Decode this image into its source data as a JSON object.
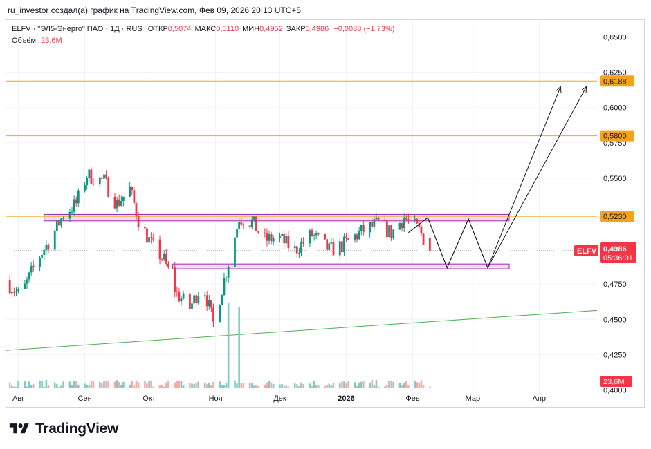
{
  "header": {
    "text": "ru_investor создал(а) график на TradingView.com, Фев 09, 2026 20:13 UTC+5"
  },
  "legend": {
    "title": "ELFV · \"ЭЛ5-Энерго\" ПАО · 1Д · RUS",
    "open_label": "ОТКР",
    "open_value": "0,5074",
    "high_label": "МАКС",
    "high_value": "0,5110",
    "low_label": "МИН",
    "low_value": "0,4952",
    "close_label": "ЗАКР",
    "close_value": "0,4986",
    "change": "−0,0088 (−1,73%)",
    "volume_label": "Объём",
    "volume_value": "23,6M"
  },
  "colors": {
    "up": "#089981",
    "down": "#f23645",
    "level": "#f7a21b",
    "zone_fill": "#f3d9f2",
    "zone_stroke": "#9c27b0",
    "trend": "#4caf50",
    "volume_up": "#80cbc4",
    "volume_down": "#f7a9a7",
    "arrow": "#131722"
  },
  "footer": {
    "logo_icon": "tradingview-logo-icon",
    "logo_text": "TradingView"
  },
  "chart_data": {
    "type": "candlestick",
    "symbol": "ELFV",
    "timeframe": "1D",
    "y_range": [
      0.3875,
      0.6625
    ],
    "y_ticks": [
      0.4,
      0.425,
      0.45,
      0.475,
      0.5,
      0.525,
      0.55,
      0.575,
      0.6,
      0.625,
      0.65
    ],
    "y_tick_labels": [
      "0,4000",
      "0,4250",
      "0,4500",
      "0,4750",
      "",
      "",
      "0,5500",
      "0,5750",
      "0,6000",
      "0,6250",
      "0,6500"
    ],
    "x_labels": [
      {
        "label": "Авг",
        "date": "2025-08-01",
        "bold": false
      },
      {
        "label": "Сен",
        "date": "2025-09-01",
        "bold": false
      },
      {
        "label": "Окт",
        "date": "2025-10-01",
        "bold": false
      },
      {
        "label": "Ноя",
        "date": "2025-11-01",
        "bold": false
      },
      {
        "label": "Дек",
        "date": "2025-12-01",
        "bold": false
      },
      {
        "label": "2026",
        "date": "2026-01-01",
        "bold": true
      },
      {
        "label": "Фев",
        "date": "2026-02-01",
        "bold": false
      },
      {
        "label": "Мар",
        "date": "2026-03-01",
        "bold": false
      },
      {
        "label": "Апр",
        "date": "2026-04-01",
        "bold": false
      }
    ],
    "x_range": [
      "2025-07-26",
      "2026-04-28"
    ],
    "price_path": [
      [
        "2025-07-26",
        0.478
      ],
      [
        "2025-08-02",
        0.466
      ],
      [
        "2025-08-10",
        0.493
      ],
      [
        "2025-08-16",
        0.507
      ],
      [
        "2025-08-22",
        0.524
      ],
      [
        "2025-08-28",
        0.532
      ],
      [
        "2025-09-02",
        0.552
      ],
      [
        "2025-09-10",
        0.548
      ],
      [
        "2025-09-16",
        0.532
      ],
      [
        "2025-09-22",
        0.542
      ],
      [
        "2025-09-26",
        0.521
      ],
      [
        "2025-10-02",
        0.503
      ],
      [
        "2025-10-08",
        0.492
      ],
      [
        "2025-10-14",
        0.468
      ],
      [
        "2025-10-20",
        0.458
      ],
      [
        "2025-10-26",
        0.476
      ],
      [
        "2025-10-31",
        0.447
      ],
      [
        "2025-11-04",
        0.472
      ],
      [
        "2025-11-08",
        0.496
      ],
      [
        "2025-11-12",
        0.522
      ],
      [
        "2025-11-18",
        0.519
      ],
      [
        "2025-11-24",
        0.506
      ],
      [
        "2025-11-30",
        0.508
      ],
      [
        "2025-12-08",
        0.499
      ],
      [
        "2025-12-16",
        0.51
      ],
      [
        "2025-12-24",
        0.499
      ],
      [
        "2025-12-30",
        0.502
      ],
      [
        "2026-01-08",
        0.512
      ],
      [
        "2026-01-16",
        0.518
      ],
      [
        "2026-01-22",
        0.511
      ],
      [
        "2026-01-28",
        0.522
      ],
      [
        "2026-02-04",
        0.513
      ],
      [
        "2026-02-09",
        0.4986
      ]
    ],
    "last_price": {
      "value": 0.4986,
      "label": "0,4986",
      "countdown": "05:36:01",
      "symbol": "ELFV"
    },
    "volume": {
      "label": "23,6M",
      "spike_dates": [
        "2025-11-07",
        "2025-11-12"
      ]
    },
    "levels": [
      {
        "value": 0.6188,
        "label": "0,6188"
      },
      {
        "value": 0.58,
        "label": "0,5800"
      },
      {
        "value": 0.523,
        "label": "0,5230"
      }
    ],
    "zones": [
      {
        "from": "2025-08-13",
        "to": "2026-03-18",
        "low": 0.5197,
        "high": 0.5243
      },
      {
        "from": "2025-10-12",
        "to": "2026-03-18",
        "low": 0.4858,
        "high": 0.4892
      }
    ],
    "trendline": {
      "start": [
        "2025-07-26",
        0.428
      ],
      "end": [
        "2026-04-28",
        0.4563
      ]
    },
    "projection_paths": [
      [
        [
          "2026-01-30",
          0.5115
        ],
        [
          "2026-02-08",
          0.522
        ],
        [
          "2026-02-17",
          0.4865
        ],
        [
          "2026-02-27",
          0.521
        ],
        [
          "2026-03-08",
          0.4865
        ],
        [
          "2026-04-11",
          0.6148
        ]
      ],
      [
        [
          "2026-01-30",
          0.5115
        ],
        [
          "2026-02-08",
          0.522
        ],
        [
          "2026-02-17",
          0.4865
        ],
        [
          "2026-02-27",
          0.521
        ],
        [
          "2026-03-08",
          0.4865
        ],
        [
          "2026-04-23",
          0.6148
        ]
      ]
    ]
  }
}
